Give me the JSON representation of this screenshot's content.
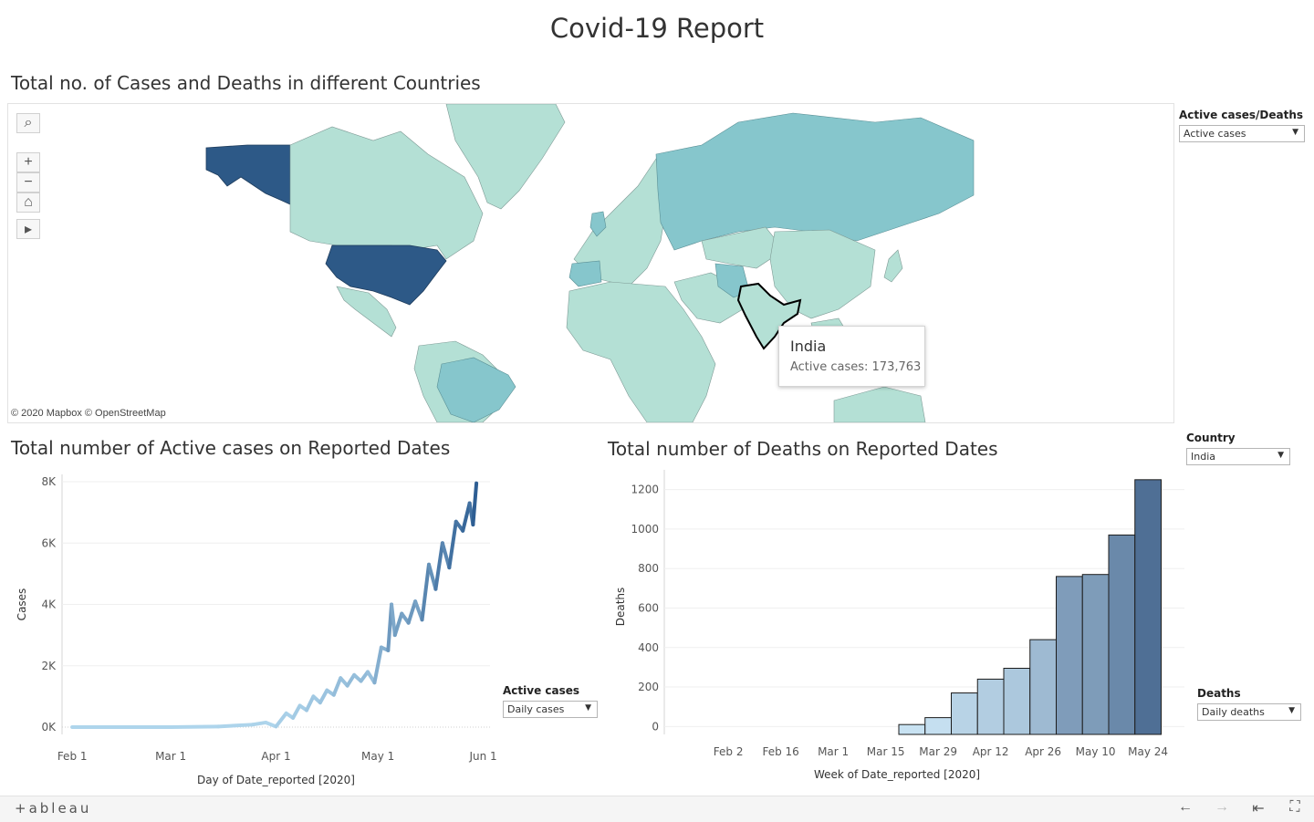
{
  "dashboard": {
    "title": "Covid-19 Report"
  },
  "map_section": {
    "title": "Total no. of Cases and Deaths in different Countries",
    "attribution": "© 2020 Mapbox  © OpenStreetMap",
    "tooltip": {
      "country": "India",
      "label": "Active cases:",
      "value": "173,763"
    },
    "colors": {
      "high": "#2d5987",
      "medium": "#86c6cc",
      "low": "#b4e0d5",
      "none": "#e8e8e8",
      "border": "#5a6f6b"
    }
  },
  "filters": {
    "active_cases_deaths": {
      "label": "Active cases/Deaths",
      "value": "Active cases"
    },
    "country": {
      "label": "Country",
      "value": "India"
    },
    "active_cases": {
      "label": "Active cases",
      "value": "Daily cases"
    },
    "deaths": {
      "label": "Deaths",
      "value": "Daily deaths"
    }
  },
  "cases_section": {
    "title": "Total number of Active cases on Reported Dates"
  },
  "deaths_section": {
    "title": "Total number of Deaths on Reported Dates"
  },
  "chart_data": [
    {
      "type": "line",
      "title": "Total number of Active cases on Reported Dates",
      "xlabel": "Day of Date_reported [2020]",
      "ylabel": "Cases",
      "x_ticks": [
        "Feb 1",
        "Mar 1",
        "Apr 1",
        "May 1",
        "Jun 1"
      ],
      "y_ticks": [
        "0K",
        "2K",
        "4K",
        "6K",
        "8K"
      ],
      "ylim": [
        0,
        8000
      ],
      "grid": true,
      "color_low": "#aed5ec",
      "color_high": "#2d5d92",
      "x": [
        "2020-02-01",
        "2020-02-15",
        "2020-03-01",
        "2020-03-15",
        "2020-03-25",
        "2020-03-29",
        "2020-04-01",
        "2020-04-04",
        "2020-04-06",
        "2020-04-08",
        "2020-04-10",
        "2020-04-12",
        "2020-04-14",
        "2020-04-16",
        "2020-04-18",
        "2020-04-20",
        "2020-04-22",
        "2020-04-24",
        "2020-04-26",
        "2020-04-28",
        "2020-04-30",
        "2020-05-02",
        "2020-05-04",
        "2020-05-05",
        "2020-05-06",
        "2020-05-08",
        "2020-05-10",
        "2020-05-12",
        "2020-05-14",
        "2020-05-16",
        "2020-05-18",
        "2020-05-20",
        "2020-05-22",
        "2020-05-24",
        "2020-05-26",
        "2020-05-28",
        "2020-05-29",
        "2020-05-30"
      ],
      "values": [
        0,
        0,
        0,
        20,
        80,
        150,
        20,
        450,
        300,
        700,
        550,
        1000,
        800,
        1200,
        1050,
        1600,
        1350,
        1700,
        1500,
        1800,
        1450,
        2600,
        2500,
        4000,
        3000,
        3700,
        3400,
        4100,
        3500,
        5300,
        4500,
        6000,
        5200,
        6700,
        6400,
        7300,
        6600,
        7950
      ]
    },
    {
      "type": "bar",
      "title": "Total number of Deaths on Reported Dates",
      "xlabel": "Week of Date_reported [2020]",
      "ylabel": "Deaths",
      "x_ticks": [
        "Feb 2",
        "Feb 16",
        "Mar 1",
        "Mar 15",
        "Mar 29",
        "Apr 12",
        "Apr 26",
        "May 10",
        "May 24"
      ],
      "y_ticks": [
        "0",
        "200",
        "400",
        "600",
        "800",
        "1000",
        "1200"
      ],
      "ylim": [
        0,
        1250
      ],
      "grid": true,
      "categories": [
        "Mar 22",
        "Mar 29",
        "Apr 5",
        "Apr 12",
        "Apr 19",
        "Apr 26",
        "May 3",
        "May 10",
        "May 17",
        "May 24"
      ],
      "values": [
        10,
        45,
        170,
        240,
        295,
        440,
        760,
        770,
        970,
        1250
      ],
      "color_low": "#c9e3f3",
      "color_high": "#4f6f95"
    }
  ],
  "footer": {
    "logo": "+ableau",
    "nav": {
      "back": "←",
      "forward": "→",
      "first": "⇤",
      "fullscreen": "⛶"
    }
  }
}
